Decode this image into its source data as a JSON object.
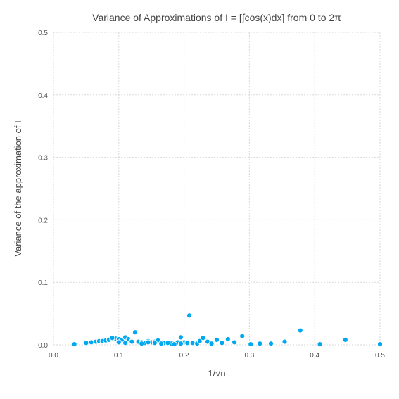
{
  "chart_data": {
    "type": "scatter",
    "title": "Variance of Approximations of I = [∫cos(x)dx] from 0 to 2π",
    "xlabel": "1/√n",
    "ylabel": "Variance of the approximation of I",
    "xlim": [
      0.0,
      0.5
    ],
    "ylim": [
      0.0,
      0.5
    ],
    "x_ticks": [
      "0.0",
      "0.1",
      "0.2",
      "0.3",
      "0.4",
      "0.5"
    ],
    "y_ticks": [
      "0.0",
      "0.1",
      "0.2",
      "0.3",
      "0.4",
      "0.5"
    ],
    "grid": true,
    "legend": false,
    "color": "#00a8f0",
    "x": [
      0.032,
      0.05,
      0.058,
      0.065,
      0.07,
      0.075,
      0.08,
      0.085,
      0.09,
      0.095,
      0.1,
      0.105,
      0.11,
      0.115,
      0.12,
      0.125,
      0.13,
      0.135,
      0.14,
      0.145,
      0.15,
      0.155,
      0.16,
      0.165,
      0.17,
      0.175,
      0.18,
      0.185,
      0.19,
      0.195,
      0.2,
      0.205,
      0.208,
      0.213,
      0.22,
      0.224,
      0.229,
      0.236,
      0.242,
      0.25,
      0.258,
      0.267,
      0.277,
      0.289,
      0.302,
      0.316,
      0.333,
      0.354,
      0.378,
      0.408,
      0.447,
      0.5,
      0.1,
      0.11,
      0.12,
      0.135,
      0.145,
      0.155,
      0.165,
      0.175,
      0.185,
      0.195,
      0.09
    ],
    "y": [
      0.001,
      0.003,
      0.004,
      0.005,
      0.006,
      0.006,
      0.007,
      0.008,
      0.009,
      0.01,
      0.009,
      0.008,
      0.012,
      0.009,
      0.006,
      0.02,
      0.005,
      0.004,
      0.003,
      0.006,
      0.004,
      0.005,
      0.007,
      0.002,
      0.003,
      0.004,
      0.002,
      0.003,
      0.004,
      0.012,
      0.004,
      0.003,
      0.047,
      0.003,
      0.002,
      0.006,
      0.011,
      0.005,
      0.002,
      0.008,
      0.003,
      0.009,
      0.004,
      0.014,
      0.001,
      0.002,
      0.002,
      0.005,
      0.023,
      0.001,
      0.008,
      0.001,
      0.004,
      0.003,
      0.005,
      0.002,
      0.004,
      0.003,
      0.002,
      0.003,
      0.001,
      0.002,
      0.011
    ]
  }
}
